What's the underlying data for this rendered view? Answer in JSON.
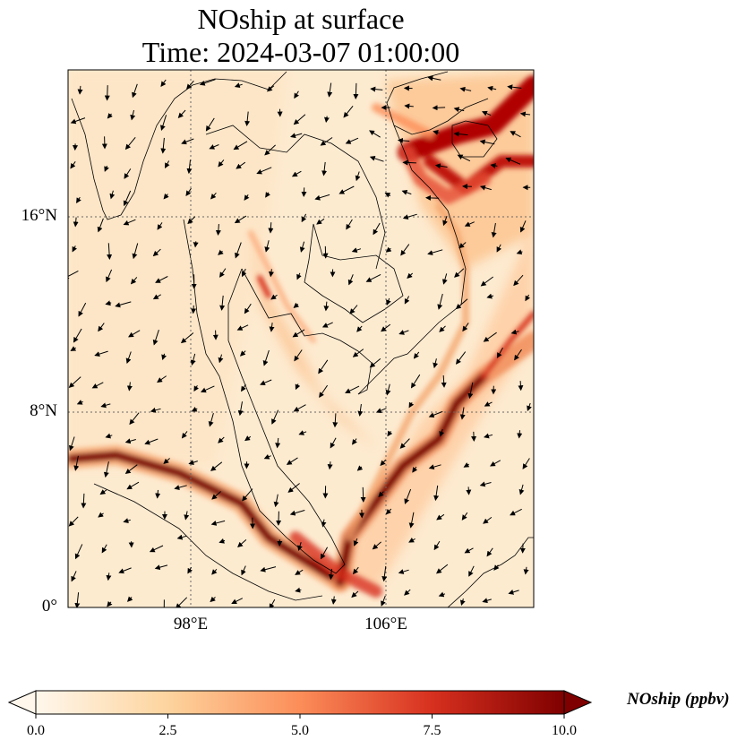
{
  "title": {
    "line1": "NOship at surface",
    "line2": "Time: 2024-03-07 01:00:00"
  },
  "map": {
    "lon_range": [
      93,
      112
    ],
    "lat_range": [
      0,
      22
    ],
    "gridlines": "dotted",
    "lat_ticks": [
      {
        "value": 16,
        "label": "16°N"
      },
      {
        "value": 8,
        "label": "8°N"
      },
      {
        "value": 0,
        "label": "0°"
      }
    ],
    "lon_ticks": [
      {
        "value": 98,
        "label": "98°E"
      },
      {
        "value": 106,
        "label": "106°E"
      }
    ],
    "colormap": "OrRd",
    "vectors": "wind arrows"
  },
  "colorbar": {
    "label": "NOship (ppbv)",
    "min": 0,
    "max": 10,
    "extend": "both",
    "ticks": [
      "0.0",
      "2.5",
      "5.0",
      "7.5",
      "10.0"
    ],
    "colors": [
      "#fff7ec",
      "#fdd49e",
      "#fc8d59",
      "#d7301f",
      "#7f0000"
    ]
  }
}
